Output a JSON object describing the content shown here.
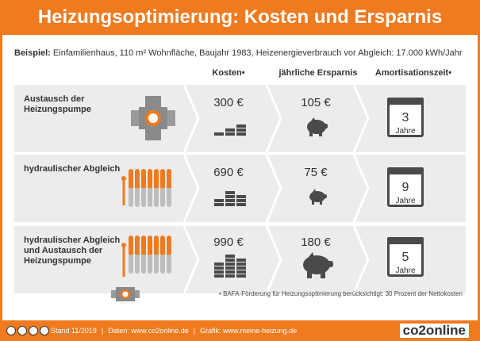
{
  "header": {
    "title": "Heizungsoptimierung: Kosten und Ersparnis"
  },
  "intro": {
    "prefix": "Beispiel:",
    "text": " Einfamilienhaus, 110 m² Wohnfläche, Baujahr 1983, Heizenergieverbrauch vor Abgleich: 17.000 kWh/Jahr"
  },
  "columns": {
    "cost": "Kosten•",
    "savings": "jährliche Ersparnis",
    "payback": "Amortisationszeit•"
  },
  "rows": [
    {
      "label": "Austausch der Heizungspumpe",
      "cost": "300 €",
      "savings": "105 €",
      "years": "3",
      "unit": "Jahre"
    },
    {
      "label": "hydraulischer Abgleich",
      "cost": "690 €",
      "savings": "75 €",
      "years": "9",
      "unit": "Jahre"
    },
    {
      "label": "hydraulischer Abgleich und Austausch der Heizungspumpe",
      "cost": "990 €",
      "savings": "180 €",
      "years": "5",
      "unit": "Jahre"
    }
  ],
  "footnote": "• BAFA-Förderung für Heizungsoptimierung berücksichtigt: 30 Prozent der Nettokosten",
  "footer": {
    "stand": "Stand 11/2019",
    "daten": "Daten: www.co2online.de",
    "grafik": "Grafik: www.meine-heizung.de",
    "brand": "co2online"
  },
  "colors": {
    "accent": "#f07a1e",
    "row_bg": "#ececec",
    "dark": "#4a4a4a"
  }
}
